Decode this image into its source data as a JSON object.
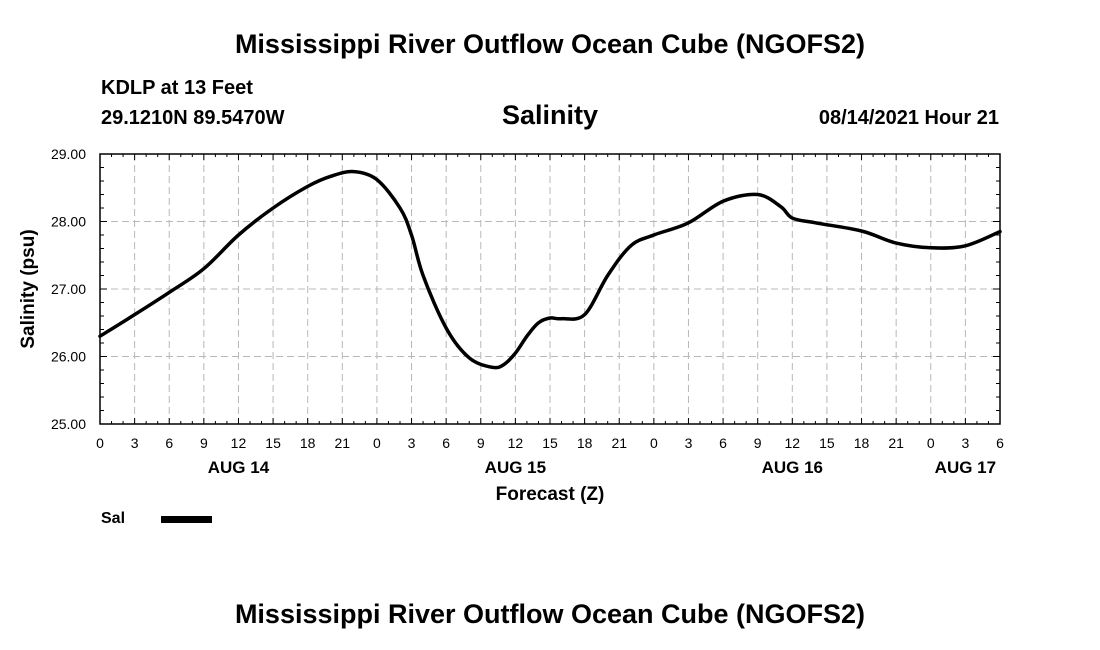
{
  "header": {
    "title": "Mississippi River Outflow Ocean Cube (NGOFS2)",
    "station": "KDLP at 13 Feet",
    "coords": "29.1210N  89.5470W",
    "subtitle": "Salinity",
    "datetime": "08/14/2021 Hour 21"
  },
  "footer": {
    "title": "Mississippi River Outflow Ocean Cube (NGOFS2)"
  },
  "legend": {
    "label": "Sal"
  },
  "chart_data": {
    "type": "line",
    "title": "Salinity",
    "xlabel": "Forecast (Z)",
    "ylabel": "Salinity (psu)",
    "x_unit": "hours since AUG 14 00Z",
    "xlim": [
      0,
      78
    ],
    "ylim": [
      25,
      29
    ],
    "grid": true,
    "y_ticks": [
      25,
      26,
      27,
      28,
      29
    ],
    "y_tick_labels": [
      "25.00",
      "26.00",
      "27.00",
      "28.00",
      "29.00"
    ],
    "x_ticks": [
      0,
      3,
      6,
      9,
      12,
      15,
      18,
      21,
      24,
      27,
      30,
      33,
      36,
      39,
      42,
      45,
      48,
      51,
      54,
      57,
      60,
      63,
      66,
      69,
      72,
      75,
      78
    ],
    "x_tick_labels": [
      "0",
      "3",
      "6",
      "9",
      "12",
      "15",
      "18",
      "21",
      "0",
      "3",
      "6",
      "9",
      "12",
      "15",
      "18",
      "21",
      "0",
      "3",
      "6",
      "9",
      "12",
      "15",
      "18",
      "21",
      "0",
      "3",
      "6"
    ],
    "day_labels": [
      {
        "x": 12,
        "label": "AUG 14"
      },
      {
        "x": 36,
        "label": "AUG 15"
      },
      {
        "x": 60,
        "label": "AUG 16"
      },
      {
        "x": 75,
        "label": "AUG 17"
      }
    ],
    "series": [
      {
        "name": "Sal",
        "color": "#000000",
        "x": [
          0,
          3,
          6,
          9,
          12,
          15,
          18,
          20,
          22,
          24,
          26,
          27,
          28,
          30,
          32,
          34,
          35,
          36,
          37,
          38,
          39,
          40,
          42,
          44,
          46,
          48,
          51,
          54,
          57,
          59,
          60,
          62,
          66,
          69,
          72,
          75,
          78
        ],
        "y": [
          26.3,
          26.62,
          26.95,
          27.3,
          27.8,
          28.2,
          28.52,
          28.67,
          28.74,
          28.62,
          28.2,
          27.8,
          27.2,
          26.42,
          25.98,
          25.84,
          25.88,
          26.05,
          26.3,
          26.5,
          26.57,
          26.56,
          26.62,
          27.2,
          27.64,
          27.8,
          27.98,
          28.3,
          28.4,
          28.22,
          28.05,
          27.98,
          27.86,
          27.68,
          27.61,
          27.64,
          27.85
        ]
      }
    ]
  }
}
